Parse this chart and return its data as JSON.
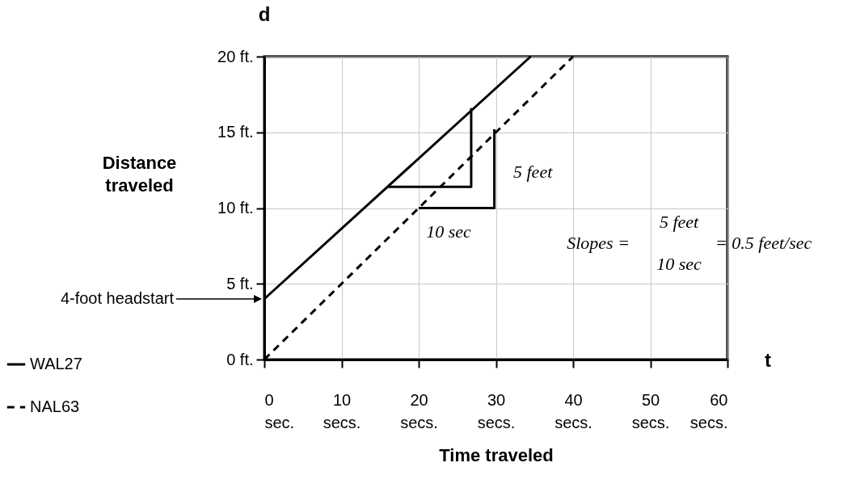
{
  "chart_data": {
    "type": "line",
    "xlabel": "Time traveled",
    "ylabel": "Distance traveled",
    "xlim": [
      0,
      60
    ],
    "ylim": [
      0,
      20
    ],
    "xticks": [
      {
        "value": 0,
        "label": "0 sec."
      },
      {
        "value": 10,
        "label": "10 secs."
      },
      {
        "value": 20,
        "label": "20 secs."
      },
      {
        "value": 30,
        "label": "30 secs."
      },
      {
        "value": 40,
        "label": "40 secs."
      },
      {
        "value": 50,
        "label": "50 secs."
      },
      {
        "value": 60,
        "label": "60 secs."
      }
    ],
    "yticks": [
      {
        "value": 0,
        "label": "0 ft."
      },
      {
        "value": 5,
        "label": "5 ft."
      },
      {
        "value": 10,
        "label": "10 ft."
      },
      {
        "value": 15,
        "label": "15 ft."
      },
      {
        "value": 20,
        "label": "20 ft."
      }
    ],
    "grid": true,
    "legend": "bottom left",
    "marker": "none",
    "series": [
      {
        "name": "WAL27",
        "color": "#000000",
        "x": [
          0,
          34.5
        ],
        "values": [
          4,
          20
        ],
        "line_style": "solid"
      },
      {
        "name": "NAL63",
        "color": "#000000",
        "x": [
          0,
          40
        ],
        "values": [
          0,
          20
        ],
        "line_style": "dashed"
      },
      {
        "color": "#000000",
        "x": [
          16,
          26.8,
          26.8
        ],
        "values": [
          11.4,
          11.4,
          16.6
        ],
        "line_style": "solid"
      },
      {
        "color": "#000000",
        "x": [
          20,
          29.8,
          29.8
        ],
        "values": [
          10,
          10,
          15.2
        ],
        "line_style": "solid"
      }
    ],
    "annotations": [
      "4-foot headstart",
      "t",
      "d",
      "5 feet",
      "10 sec",
      "Slopes =",
      "5 feet",
      "10 sec",
      "= 0.5 feet/sec"
    ]
  }
}
